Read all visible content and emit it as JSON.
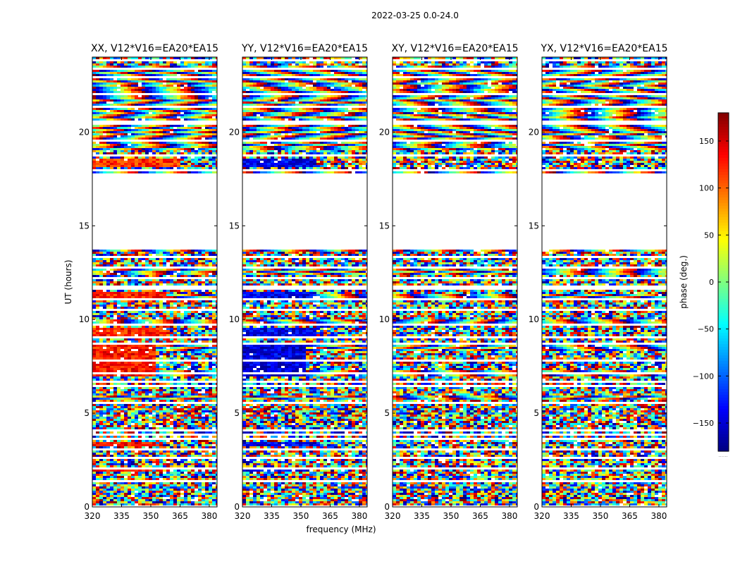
{
  "chart_data": {
    "type": "heatmap",
    "suptitle": "2022-03-25 0.0-24.0",
    "panels": [
      {
        "title": "XX, V12*V16=EA20*EA15",
        "polarization": "XX"
      },
      {
        "title": "YY, V12*V16=EA20*EA15",
        "polarization": "YY"
      },
      {
        "title": "XY, V12*V16=EA20*EA15",
        "polarization": "XY"
      },
      {
        "title": "YX, V12*V16=EA20*EA15",
        "polarization": "YX"
      }
    ],
    "xlabel": "frequency (MHz)",
    "ylabel": "UT (hours)",
    "xlim": [
      320,
      384
    ],
    "ylim": [
      0,
      24
    ],
    "xticks": [
      320,
      335,
      350,
      365,
      380
    ],
    "yticks": [
      0,
      5,
      10,
      15,
      20
    ],
    "colorbar": {
      "label": "phase (deg.)",
      "range": [
        -180,
        180
      ],
      "ticks": [
        150,
        100,
        50,
        0,
        -50,
        -100,
        -150
      ],
      "tick_labels": [
        "150",
        "100",
        "50",
        "0",
        "−50",
        "−100",
        "−150"
      ],
      "colormap": [
        "#00007f",
        "#0000ff",
        "#007fff",
        "#00ffff",
        "#7fff7f",
        "#ffff00",
        "#ff7f00",
        "#ff0000",
        "#7f0000"
      ],
      "footer": "......"
    },
    "data_gaps_hours": [
      [
        13.7,
        17.8
      ]
    ],
    "coherent_regions": {
      "XX": [
        {
          "ut": [
            18.1,
            18.6
          ],
          "freq": [
            320,
            365
          ],
          "phase": 120
        },
        {
          "ut": [
            11.0,
            11.5
          ],
          "freq": [
            320,
            358
          ],
          "phase": 125
        },
        {
          "ut": [
            9.1,
            9.6
          ],
          "freq": [
            320,
            358
          ],
          "phase": 125
        },
        {
          "ut": [
            7.0,
            8.6
          ],
          "freq": [
            320,
            352
          ],
          "phase": 130
        },
        {
          "ut": [
            3.2,
            3.5
          ],
          "freq": [
            320,
            352
          ],
          "phase": 130
        },
        {
          "ut": [
            1.9,
            2.1
          ],
          "freq": [
            320,
            350
          ],
          "phase": 130
        }
      ],
      "YY": [
        {
          "ut": [
            18.1,
            18.6
          ],
          "freq": [
            320,
            358
          ],
          "phase": -140
        },
        {
          "ut": [
            11.0,
            11.5
          ],
          "freq": [
            320,
            358
          ],
          "phase": -140
        },
        {
          "ut": [
            9.1,
            9.6
          ],
          "freq": [
            320,
            358
          ],
          "phase": -140
        },
        {
          "ut": [
            7.0,
            8.6
          ],
          "freq": [
            320,
            352
          ],
          "phase": -145
        },
        {
          "ut": [
            3.2,
            3.5
          ],
          "freq": [
            320,
            358
          ],
          "phase": -140
        },
        {
          "ut": [
            1.9,
            2.1
          ],
          "freq": [
            320,
            356
          ],
          "phase": -140
        }
      ],
      "XY": [],
      "YX": []
    }
  }
}
